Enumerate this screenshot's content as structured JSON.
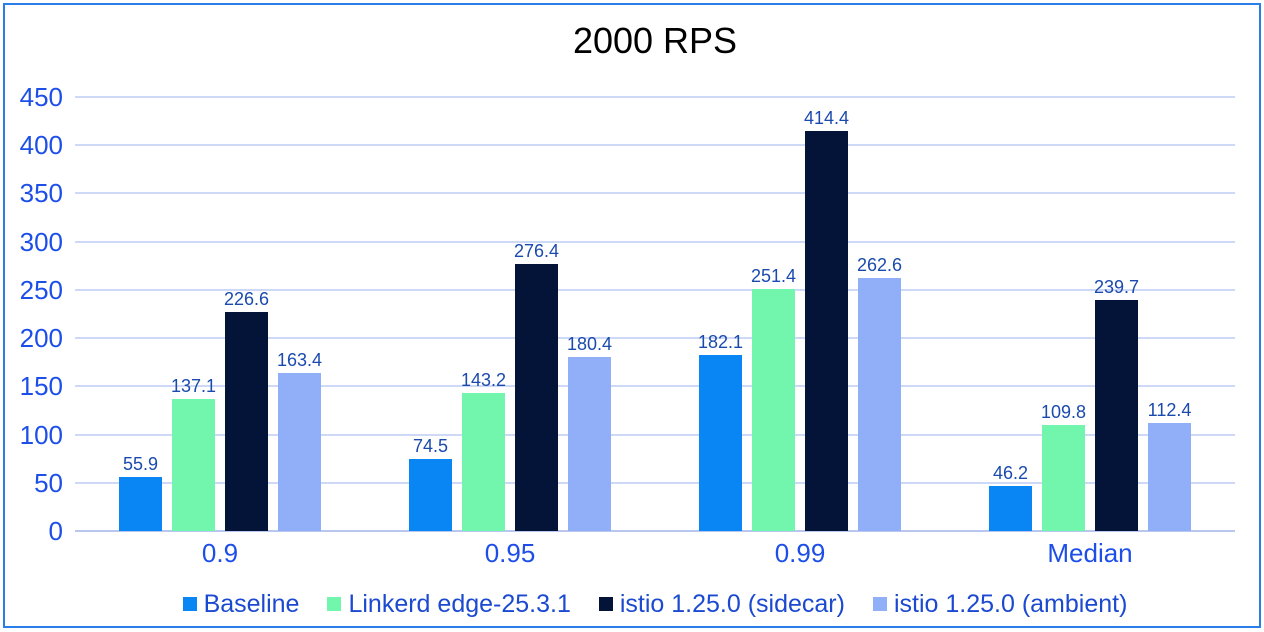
{
  "chart_data": {
    "type": "bar",
    "title": "2000 RPS",
    "categories": [
      "0.9",
      "0.95",
      "0.99",
      "Median"
    ],
    "series": [
      {
        "name": "Baseline",
        "color": "#0986f4",
        "values": [
          55.9,
          74.5,
          182.1,
          46.2
        ]
      },
      {
        "name": "Linkerd edge-25.3.1",
        "color": "#72f5ac",
        "values": [
          137.1,
          143.2,
          251.4,
          109.8
        ]
      },
      {
        "name": "istio 1.25.0 (sidecar)",
        "color": "#041338",
        "values": [
          226.6,
          276.4,
          414.4,
          239.7
        ]
      },
      {
        "name": "istio 1.25.0 (ambient)",
        "color": "#91aef9",
        "values": [
          163.4,
          180.4,
          262.6,
          112.4
        ]
      }
    ],
    "xlabel": "",
    "ylabel": "",
    "ylim": [
      0,
      450
    ],
    "yticks": [
      0,
      50,
      100,
      150,
      200,
      250,
      300,
      350,
      400,
      450
    ],
    "grid": true,
    "legend_position": "bottom",
    "data_labels_shown": true,
    "colors": {
      "title": "#000000",
      "axis_label": "#1d4fe8",
      "data_label": "#1a4aad",
      "legend_label": "#1b49d0",
      "gridline": "#cdd9f6",
      "axis_line": "#b9c7ef",
      "frame_border": "#2b7de9",
      "background": "#ffffff"
    }
  }
}
